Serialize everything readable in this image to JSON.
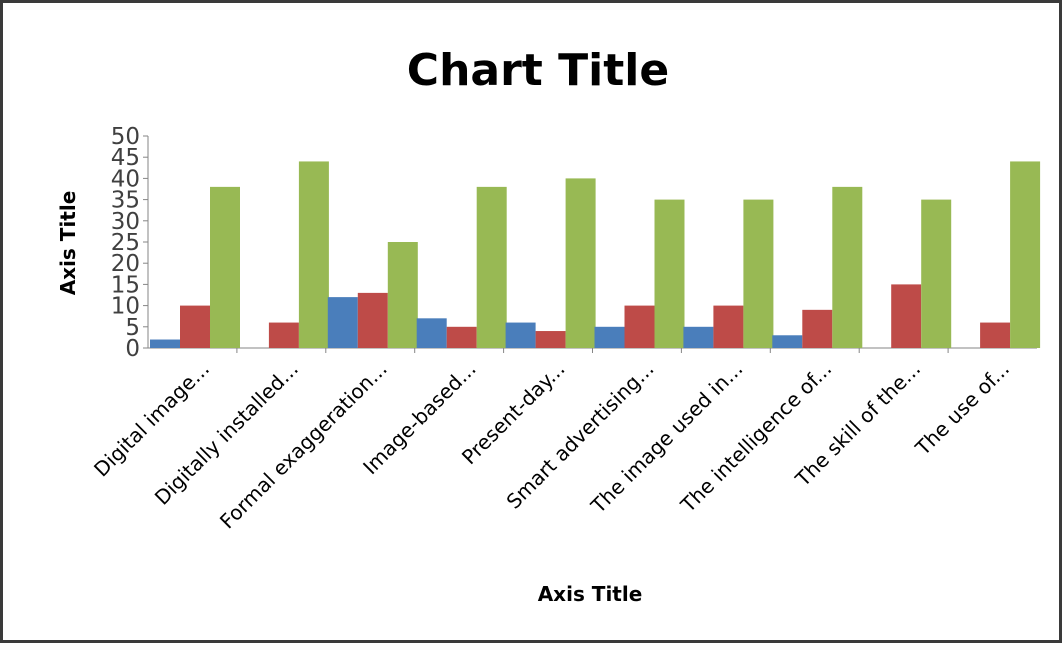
{
  "chart_data": {
    "type": "bar",
    "title": "Chart Title",
    "xlabel": "Axis Title",
    "ylabel": "Axis Title",
    "ylim": [
      0,
      50
    ],
    "yticks": [
      0,
      5,
      10,
      15,
      20,
      25,
      30,
      35,
      40,
      45,
      50
    ],
    "grid": false,
    "legend": "none",
    "categories": [
      "Digital image...",
      "Digitally installed...",
      "Formal exaggeration...",
      "Image-based...",
      "Present-day...",
      "Smart advertising...",
      "The image used in...",
      "The intelligence of...",
      "The skill of the...",
      "The use of..."
    ],
    "series": [
      {
        "color": "#4a7ebb",
        "values": [
          2,
          0,
          12,
          7,
          6,
          5,
          5,
          3,
          0,
          0
        ]
      },
      {
        "color": "#be4b48",
        "values": [
          10,
          6,
          13,
          5,
          4,
          10,
          10,
          9,
          15,
          6
        ]
      },
      {
        "color": "#98b954",
        "values": [
          38,
          44,
          25,
          38,
          40,
          35,
          35,
          38,
          35,
          44
        ]
      }
    ]
  }
}
